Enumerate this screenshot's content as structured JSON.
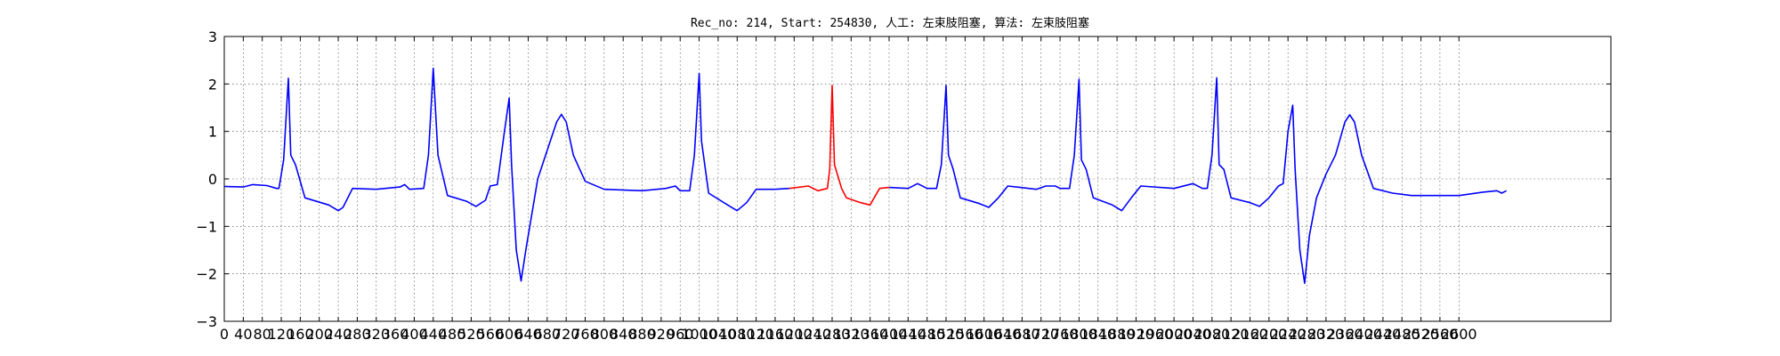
{
  "chart_data": {
    "type": "line",
    "title": "Rec_no: 214, Start: 254830, 人工: 左束肢阻塞, 算法: 左束肢阻塞",
    "xlabel": "",
    "ylabel": "",
    "xlim": [
      0,
      2920
    ],
    "ylim": [
      -3,
      3
    ],
    "grid": true,
    "x_ticks": [
      0,
      40,
      80,
      120,
      160,
      200,
      240,
      280,
      320,
      360,
      400,
      440,
      480,
      520,
      560,
      600,
      640,
      680,
      720,
      760,
      800,
      840,
      880,
      920,
      960,
      1000,
      1040,
      1080,
      1120,
      1160,
      1200,
      1240,
      1280,
      1320,
      1360,
      1400,
      1440,
      1480,
      1520,
      1560,
      1600,
      1640,
      1680,
      1720,
      1760,
      1800,
      1840,
      1880,
      1920,
      1960,
      2000,
      2040,
      2080,
      2120,
      2160,
      2200,
      2240,
      2280,
      2320,
      2360,
      2400,
      2440,
      2480,
      2520,
      2560,
      2600
    ],
    "x_tick_labels": [
      "0",
      "40",
      "80",
      "120",
      "160",
      "200",
      "240",
      "280",
      "320",
      "360",
      "400",
      "440",
      "480",
      "520",
      "560",
      "600",
      "640",
      "680",
      "720",
      "760",
      "800",
      "840",
      "880",
      "920",
      "960",
      "1000",
      "1040",
      "1080",
      "1120",
      "1160",
      "1200",
      "1240",
      "1280",
      "1320",
      "1360",
      "1400",
      "1440",
      "1480",
      "1520",
      "1560",
      "1600",
      "1640",
      "1680",
      "1720",
      "1760",
      "1800",
      "1840",
      "1880",
      "1920",
      "1960",
      "2000",
      "2040",
      "2080",
      "2120",
      "2160",
      "2200",
      "2240",
      "2280",
      "2320",
      "2360",
      "2400",
      "2440",
      "2480",
      "2520",
      "2560",
      "2600"
    ],
    "y_ticks": [
      -3,
      -2,
      -1,
      0,
      1,
      2,
      3
    ],
    "y_tick_labels": [
      "−3",
      "−2",
      "−1",
      "0",
      "1",
      "2",
      "3"
    ],
    "series": [
      {
        "color": "#0000ff",
        "segments": [
          [
            [
              0,
              -0.16
            ],
            [
              40,
              -0.17
            ],
            [
              60,
              -0.12
            ],
            [
              90,
              -0.14
            ],
            [
              110,
              -0.2
            ],
            [
              115,
              -0.2
            ],
            [
              125,
              0.4
            ],
            [
              135,
              2.12
            ],
            [
              140,
              0.5
            ],
            [
              150,
              0.3
            ],
            [
              170,
              -0.4
            ],
            [
              220,
              -0.55
            ],
            [
              240,
              -0.67
            ],
            [
              250,
              -0.6
            ],
            [
              270,
              -0.2
            ],
            [
              320,
              -0.22
            ],
            [
              370,
              -0.17
            ],
            [
              380,
              -0.12
            ],
            [
              390,
              -0.22
            ],
            [
              420,
              -0.2
            ],
            [
              430,
              0.5
            ],
            [
              440,
              2.33
            ],
            [
              450,
              0.5
            ],
            [
              470,
              -0.35
            ],
            [
              510,
              -0.47
            ],
            [
              530,
              -0.58
            ],
            [
              550,
              -0.45
            ],
            [
              560,
              -0.15
            ],
            [
              575,
              -0.12
            ],
            [
              590,
              1.0
            ],
            [
              600,
              1.7
            ],
            [
              605,
              0.3
            ],
            [
              615,
              -1.5
            ],
            [
              625,
              -2.15
            ],
            [
              635,
              -1.5
            ],
            [
              660,
              0.0
            ],
            [
              680,
              0.6
            ],
            [
              700,
              1.2
            ],
            [
              710,
              1.36
            ],
            [
              720,
              1.2
            ],
            [
              735,
              0.5
            ],
            [
              760,
              -0.05
            ],
            [
              800,
              -0.22
            ],
            [
              880,
              -0.25
            ],
            [
              930,
              -0.2
            ],
            [
              950,
              -0.15
            ],
            [
              960,
              -0.25
            ],
            [
              980,
              -0.25
            ],
            [
              990,
              0.5
            ],
            [
              1000,
              2.22
            ],
            [
              1005,
              0.8
            ],
            [
              1020,
              -0.3
            ],
            [
              1060,
              -0.55
            ],
            [
              1080,
              -0.67
            ],
            [
              1100,
              -0.5
            ],
            [
              1120,
              -0.22
            ],
            [
              1160,
              -0.22
            ],
            [
              1190,
              -0.2
            ]
          ]
        ]
      },
      {
        "color": "#ff0000",
        "segments": [
          [
            [
              1190,
              -0.2
            ],
            [
              1230,
              -0.15
            ],
            [
              1250,
              -0.25
            ],
            [
              1270,
              -0.2
            ],
            [
              1275,
              0.2
            ],
            [
              1280,
              1.97
            ],
            [
              1285,
              0.3
            ],
            [
              1300,
              -0.2
            ],
            [
              1310,
              -0.4
            ],
            [
              1340,
              -0.5
            ],
            [
              1360,
              -0.55
            ],
            [
              1380,
              -0.2
            ],
            [
              1400,
              -0.18
            ]
          ]
        ]
      },
      {
        "color": "#0000ff",
        "segments": [
          [
            [
              1400,
              -0.18
            ],
            [
              1440,
              -0.2
            ],
            [
              1460,
              -0.1
            ],
            [
              1480,
              -0.2
            ],
            [
              1500,
              -0.2
            ],
            [
              1510,
              0.3
            ],
            [
              1520,
              1.97
            ],
            [
              1525,
              0.5
            ],
            [
              1535,
              0.2
            ],
            [
              1550,
              -0.4
            ],
            [
              1590,
              -0.52
            ],
            [
              1610,
              -0.6
            ],
            [
              1630,
              -0.4
            ],
            [
              1650,
              -0.15
            ],
            [
              1710,
              -0.22
            ],
            [
              1730,
              -0.15
            ],
            [
              1750,
              -0.15
            ],
            [
              1760,
              -0.2
            ],
            [
              1780,
              -0.2
            ],
            [
              1790,
              0.5
            ],
            [
              1800,
              2.1
            ],
            [
              1805,
              0.4
            ],
            [
              1815,
              0.2
            ],
            [
              1830,
              -0.4
            ],
            [
              1870,
              -0.55
            ],
            [
              1890,
              -0.67
            ],
            [
              1910,
              -0.4
            ],
            [
              1930,
              -0.15
            ],
            [
              2000,
              -0.2
            ],
            [
              2040,
              -0.1
            ],
            [
              2060,
              -0.2
            ],
            [
              2070,
              -0.2
            ],
            [
              2080,
              0.5
            ],
            [
              2090,
              2.13
            ],
            [
              2095,
              0.3
            ],
            [
              2105,
              0.2
            ],
            [
              2120,
              -0.4
            ],
            [
              2160,
              -0.5
            ],
            [
              2180,
              -0.58
            ],
            [
              2200,
              -0.4
            ],
            [
              2220,
              -0.15
            ],
            [
              2230,
              -0.1
            ],
            [
              2240,
              1.0
            ],
            [
              2250,
              1.55
            ],
            [
              2255,
              0.2
            ],
            [
              2265,
              -1.5
            ],
            [
              2275,
              -2.2
            ],
            [
              2285,
              -1.2
            ],
            [
              2300,
              -0.4
            ],
            [
              2320,
              0.1
            ],
            [
              2340,
              0.5
            ],
            [
              2360,
              1.2
            ],
            [
              2370,
              1.35
            ],
            [
              2380,
              1.2
            ],
            [
              2395,
              0.5
            ],
            [
              2420,
              -0.2
            ],
            [
              2460,
              -0.3
            ],
            [
              2500,
              -0.35
            ],
            [
              2600,
              -0.35
            ],
            [
              2650,
              -0.28
            ],
            [
              2680,
              -0.25
            ],
            [
              2690,
              -0.3
            ],
            [
              2700,
              -0.25
            ]
          ]
        ]
      }
    ]
  }
}
